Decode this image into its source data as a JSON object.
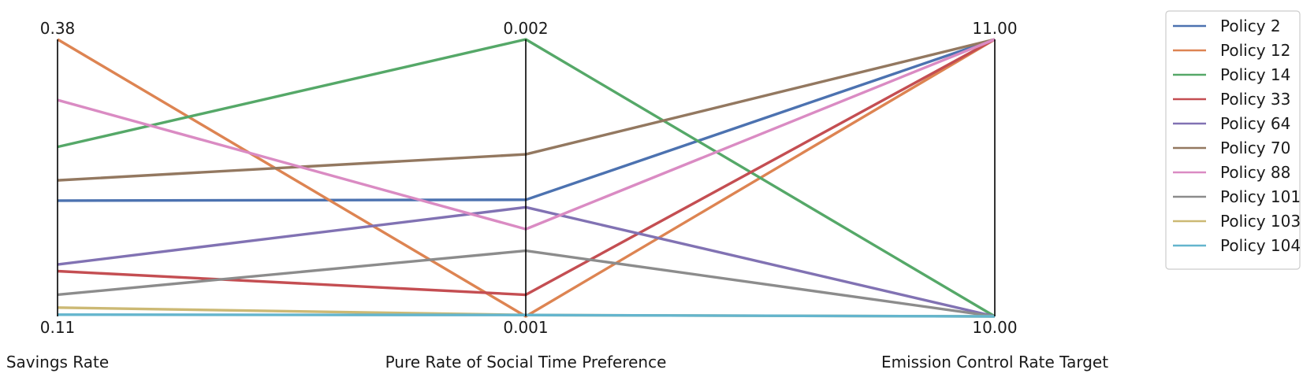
{
  "chart_data": {
    "type": "line",
    "subtype": "parallel-coordinates",
    "axes": [
      {
        "name": "Savings Rate",
        "min_label": "0.11",
        "max_label": "0.38",
        "min": 0.11,
        "max": 0.38
      },
      {
        "name": "Pure Rate of Social Time Preference",
        "min_label": "0.001",
        "max_label": "0.002",
        "min": 0.001,
        "max": 0.002
      },
      {
        "name": "Emission Control Rate Target",
        "min_label": "10.00",
        "max_label": "11.00",
        "min": 10.0,
        "max": 11.0
      }
    ],
    "legend_position": "top-right (outside plot)",
    "grid": false,
    "series": [
      {
        "name": "Policy 2",
        "color": "#4c72b0",
        "values": [
          0.2228,
          0.001421,
          11.0
        ]
      },
      {
        "name": "Policy 12",
        "color": "#dd8452",
        "values": [
          0.38,
          0.001,
          11.0
        ]
      },
      {
        "name": "Policy 14",
        "color": "#55a868",
        "values": [
          0.2752,
          0.002,
          10.0
        ]
      },
      {
        "name": "Policy 33",
        "color": "#c44e52",
        "values": [
          0.1541,
          0.001078,
          11.0
        ]
      },
      {
        "name": "Policy 64",
        "color": "#8172b3",
        "values": [
          0.1606,
          0.001394,
          10.0
        ]
      },
      {
        "name": "Policy 70",
        "color": "#937860",
        "values": [
          0.2426,
          0.001585,
          11.0
        ]
      },
      {
        "name": "Policy 88",
        "color": "#da8bc3",
        "values": [
          0.3209,
          0.001315,
          11.0
        ]
      },
      {
        "name": "Policy 101",
        "color": "#8c8c8c",
        "values": [
          0.1311,
          0.001237,
          10.0
        ]
      },
      {
        "name": "Policy 103",
        "color": "#ccb974",
        "values": [
          0.1186,
          0.001005,
          10.0
        ]
      },
      {
        "name": "Policy 104",
        "color": "#64b5cd",
        "values": [
          0.1117,
          0.001005,
          10.0
        ]
      }
    ]
  }
}
